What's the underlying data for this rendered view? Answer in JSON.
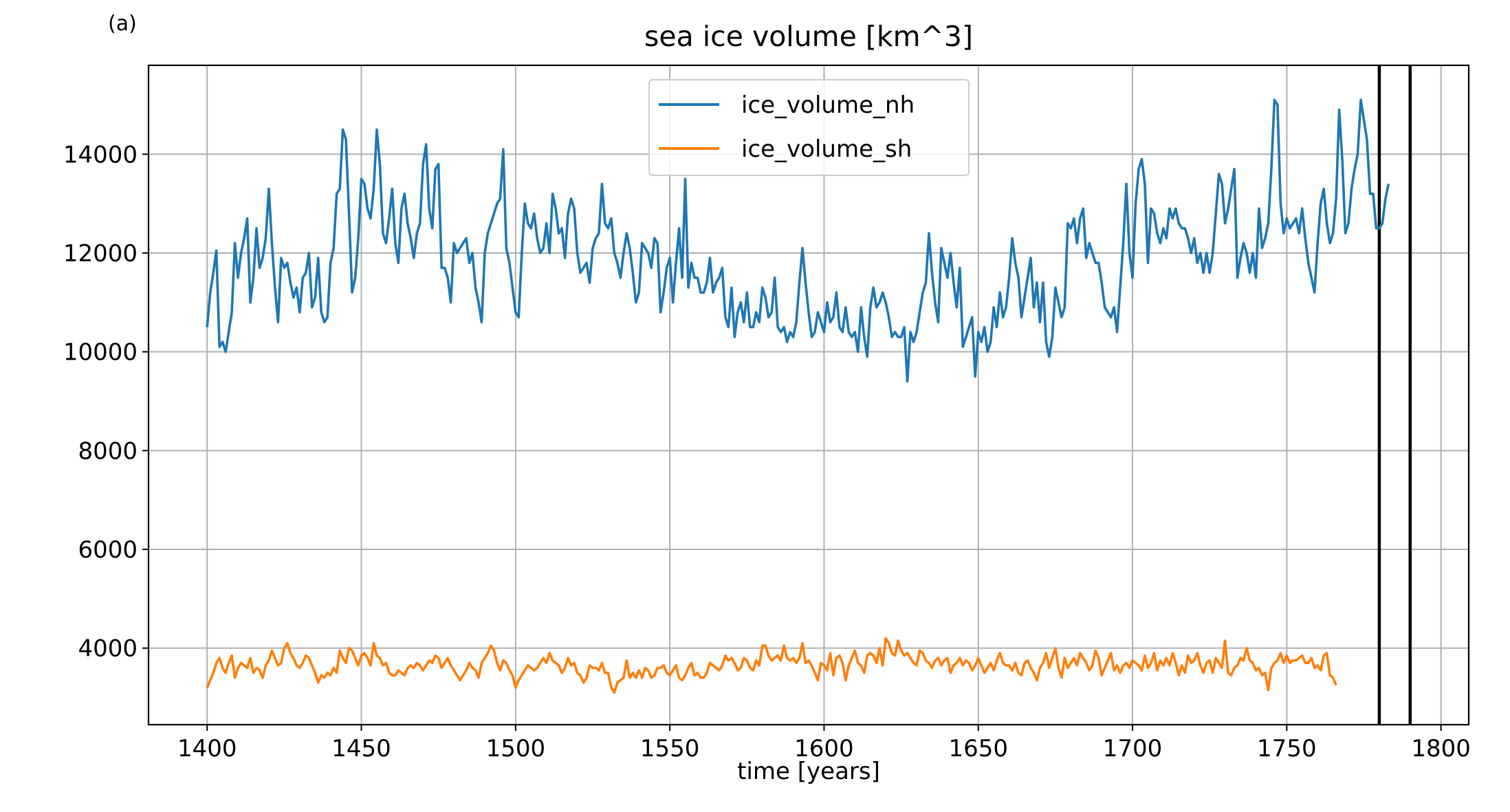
{
  "chart_data": {
    "type": "line",
    "panel_label": "(a)",
    "title": "sea ice volume [km^3]",
    "xlabel": "time [years]",
    "ylabel": "",
    "xlim": [
      1381,
      1809
    ],
    "ylim": [
      2450,
      15800
    ],
    "xticks": [
      1400,
      1450,
      1500,
      1550,
      1600,
      1650,
      1700,
      1750,
      1800
    ],
    "yticks": [
      4000,
      6000,
      8000,
      10000,
      12000,
      14000
    ],
    "grid": true,
    "legend_position": "upper center",
    "vertical_lines": [
      1780,
      1790
    ],
    "series": [
      {
        "name": "ice_volume_nh",
        "color": "#1f77b4",
        "x_start": 1400,
        "x_step": 1,
        "values": [
          10500,
          11200,
          11600,
          12050,
          10100,
          10200,
          10000,
          10400,
          10800,
          12200,
          11500,
          12000,
          12300,
          12700,
          11000,
          11500,
          12500,
          11700,
          11900,
          12300,
          13300,
          12200,
          11300,
          10600,
          11900,
          11700,
          11800,
          11400,
          11100,
          11300,
          10800,
          11500,
          11600,
          12000,
          10900,
          11100,
          11900,
          10800,
          10600,
          10700,
          11800,
          12100,
          13200,
          13300,
          14500,
          14300,
          12800,
          11200,
          11500,
          12300,
          13500,
          13400,
          12900,
          12700,
          13300,
          14500,
          13800,
          12400,
          12200,
          12700,
          13300,
          12200,
          11800,
          12900,
          13200,
          12600,
          12300,
          11900,
          12400,
          12600,
          13800,
          14200,
          12900,
          12500,
          13700,
          13800,
          11700,
          11700,
          11500,
          11000,
          12200,
          12000,
          12100,
          12200,
          12300,
          11800,
          12000,
          11300,
          11000,
          10600,
          12000,
          12400,
          12600,
          12800,
          13000,
          13100,
          14100,
          12100,
          11800,
          11300,
          10800,
          10700,
          12000,
          13000,
          12600,
          12500,
          12800,
          12300,
          12000,
          12100,
          12600,
          12000,
          13200,
          12900,
          12400,
          12500,
          11900,
          12800,
          13100,
          12900,
          12000,
          11600,
          11700,
          11800,
          11400,
          12100,
          12300,
          12400,
          13400,
          12600,
          12500,
          12700,
          12000,
          11800,
          11500,
          12000,
          12400,
          12100,
          11600,
          11000,
          11200,
          12200,
          12100,
          12000,
          11700,
          12300,
          12200,
          10800,
          11200,
          11700,
          11900,
          11000,
          11800,
          12500,
          11500,
          13500,
          11300,
          11800,
          11500,
          11500,
          11200,
          11200,
          11400,
          11900,
          11200,
          11400,
          11500,
          11700,
          10700,
          10500,
          11300,
          10300,
          10800,
          11000,
          10600,
          11200,
          10500,
          10500,
          10800,
          10600,
          11300,
          11100,
          10700,
          10800,
          11500,
          10500,
          10400,
          10500,
          10200,
          10400,
          10300,
          10600,
          11400,
          12100,
          11400,
          10800,
          10300,
          10400,
          10800,
          10600,
          10400,
          11000,
          10600,
          10700,
          11200,
          10500,
          10400,
          10900,
          10400,
          10300,
          10400,
          10000,
          10900,
          10300,
          9900,
          10900,
          11300,
          10900,
          11000,
          11200,
          11000,
          10700,
          10300,
          10400,
          10300,
          10300,
          10500,
          9400,
          10400,
          10200,
          10400,
          10800,
          11200,
          11400,
          12400,
          11600,
          11000,
          10600,
          12100,
          11800,
          11500,
          12000,
          11400,
          10900,
          11700,
          10100,
          10300,
          10500,
          10700,
          9500,
          10400,
          10200,
          10500,
          10000,
          10200,
          10900,
          10500,
          11200,
          10700,
          10900,
          11500,
          12300,
          11800,
          11500,
          10700,
          11100,
          11500,
          11900,
          10900,
          11400,
          10600,
          11400,
          10200,
          9900,
          10300,
          11300,
          11000,
          10700,
          10900,
          12600,
          12500,
          12700,
          12200,
          12700,
          12900,
          11900,
          12200,
          12000,
          11800,
          11800,
          11400,
          10900,
          10800,
          10700,
          10900,
          10400,
          11300,
          12200,
          13400,
          12000,
          11500,
          13000,
          13700,
          13900,
          13400,
          11800,
          12900,
          12800,
          12400,
          12200,
          12500,
          12300,
          12900,
          12700,
          12900,
          12600,
          12500,
          12500,
          12300,
          12000,
          12300,
          11800,
          12000,
          11600,
          12000,
          11600,
          12000,
          12800,
          13600,
          13400,
          12600,
          12900,
          13300,
          13700,
          11500,
          11900,
          12200,
          12000,
          11600,
          12000,
          11500,
          12900,
          12100,
          12300,
          12600,
          13700,
          15100,
          15000,
          13000,
          12400,
          12700,
          12500,
          12600,
          12700,
          12400,
          12900,
          12300,
          11800,
          11500,
          11200,
          12200,
          13000,
          13300,
          12600,
          12200,
          12400,
          13100,
          14900,
          13900,
          12400,
          12600,
          13300,
          13700,
          14000,
          15100,
          14700,
          14300,
          13200,
          13200,
          12500,
          12500,
          12600,
          13100,
          13400
        ]
      },
      {
        "name": "ice_volume_sh",
        "color": "#ff7f0e",
        "x_start": 1400,
        "x_step": 1,
        "values": [
          3200,
          3350,
          3500,
          3700,
          3800,
          3600,
          3500,
          3700,
          3850,
          3400,
          3600,
          3700,
          3650,
          3600,
          3800,
          3500,
          3600,
          3550,
          3400,
          3650,
          3750,
          3950,
          3800,
          3650,
          3700,
          4000,
          4100,
          3900,
          3800,
          3650,
          3600,
          3700,
          3850,
          3800,
          3650,
          3500,
          3300,
          3450,
          3400,
          3500,
          3450,
          3600,
          3500,
          3950,
          3800,
          3700,
          4000,
          3950,
          3800,
          3650,
          3850,
          3900,
          3800,
          3650,
          4100,
          3850,
          3800,
          3650,
          3700,
          3500,
          3450,
          3450,
          3550,
          3500,
          3450,
          3600,
          3650,
          3600,
          3700,
          3650,
          3550,
          3650,
          3750,
          3700,
          3850,
          3800,
          3600,
          3700,
          3800,
          3650,
          3550,
          3450,
          3350,
          3450,
          3550,
          3700,
          3600,
          3550,
          3400,
          3700,
          3800,
          3900,
          4050,
          3950,
          3700,
          3550,
          3750,
          3700,
          3550,
          3450,
          3200,
          3350,
          3450,
          3550,
          3650,
          3600,
          3550,
          3600,
          3700,
          3800,
          3700,
          3900,
          3750,
          3700,
          3650,
          3500,
          3600,
          3800,
          3650,
          3700,
          3500,
          3450,
          3300,
          3400,
          3650,
          3600,
          3600,
          3550,
          3700,
          3500,
          3500,
          3200,
          3100,
          3300,
          3350,
          3400,
          3750,
          3400,
          3500,
          3400,
          3550,
          3400,
          3600,
          3550,
          3400,
          3450,
          3600,
          3600,
          3650,
          3500,
          3450,
          3550,
          3650,
          3400,
          3350,
          3450,
          3600,
          3700,
          3450,
          3500,
          3400,
          3400,
          3500,
          3700,
          3650,
          3600,
          3550,
          3650,
          3850,
          3750,
          3800,
          3700,
          3550,
          3600,
          3800,
          3750,
          3600,
          3550,
          3750,
          3650,
          4050,
          4050,
          3850,
          3750,
          3800,
          3850,
          3750,
          4050,
          3800,
          3750,
          3800,
          3700,
          3800,
          4100,
          3700,
          3750,
          3650,
          3500,
          3350,
          3700,
          3650,
          3550,
          3900,
          3450,
          3800,
          3850,
          3700,
          3350,
          3650,
          3800,
          3950,
          3700,
          3650,
          3500,
          3850,
          3900,
          3850,
          3700,
          4000,
          3650,
          4200,
          4100,
          3900,
          3850,
          4150,
          3950,
          3850,
          3900,
          3800,
          3700,
          3650,
          3950,
          3900,
          3750,
          3700,
          3600,
          3750,
          3800,
          3650,
          3750,
          3800,
          3500,
          3650,
          3700,
          3800,
          3650,
          3750,
          3700,
          3550,
          3650,
          3800,
          3650,
          3500,
          3600,
          3700,
          3550,
          3750,
          3900,
          3700,
          3650,
          3650,
          3550,
          3700,
          3500,
          3450,
          3700,
          3750,
          3600,
          3500,
          3350,
          3600,
          3700,
          3900,
          3600,
          3800,
          4000,
          3600,
          3400,
          3800,
          3600,
          3700,
          3800,
          3650,
          3900,
          3800,
          3700,
          3550,
          3650,
          3950,
          3800,
          3450,
          3600,
          3750,
          3900,
          3550,
          3650,
          3500,
          3650,
          3700,
          3600,
          3750,
          3700,
          3650,
          3550,
          3850,
          3600,
          3700,
          3900,
          3550,
          3750,
          3650,
          3800,
          3650,
          3900,
          3700,
          3450,
          3650,
          3500,
          3850,
          3700,
          3750,
          3900,
          3650,
          3500,
          3700,
          3750,
          3500,
          3800,
          3700,
          3600,
          4150,
          3500,
          3450,
          3600,
          3650,
          3800,
          3750,
          4000,
          3750,
          3700,
          3550,
          3600,
          3450,
          3500,
          3150,
          3600,
          3700,
          3750,
          3900,
          3700,
          3850,
          3700,
          3750,
          3750,
          3800,
          3850,
          3700,
          3700,
          3800,
          3600,
          3650,
          3550,
          3850,
          3900,
          3450,
          3400,
          3250
        ]
      }
    ]
  }
}
